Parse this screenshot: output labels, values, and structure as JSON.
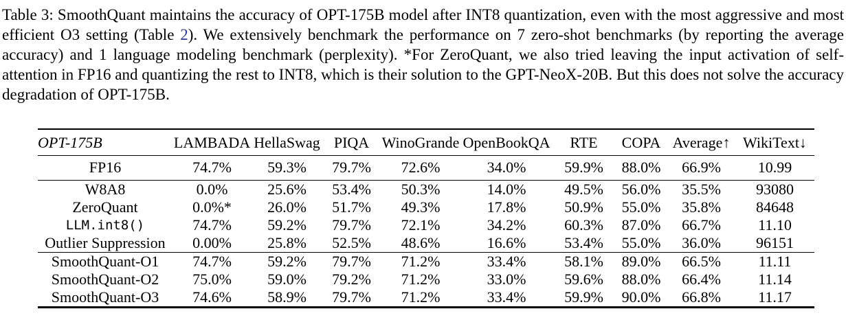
{
  "caption": {
    "label": "Table 3:",
    "prefix": "Table 3: SmoothQuant maintains the accuracy of OPT-175B model after INT8 quantization, even with the most aggressive and most efficient O3 setting (Table ",
    "link_text": "2",
    "link_color": "#2634b8",
    "suffix": "). We extensively benchmark the performance on 7 zero-shot benchmarks (by reporting the average accuracy) and 1 language modeling benchmark (perplexity). *For ZeroQuant, we also tried leaving the input activation of self-attention in FP16 and quantizing the rest to INT8, which is their solution to the GPT-NeoX-20B. But this does not solve the accuracy degradation of OPT-175B."
  },
  "table": {
    "columns": [
      {
        "label": "OPT-175B",
        "italic": true,
        "align": "left"
      },
      {
        "label": "LAMBADA"
      },
      {
        "label": "HellaSwag"
      },
      {
        "label": "PIQA"
      },
      {
        "label": "WinoGrande"
      },
      {
        "label": "OpenBookQA"
      },
      {
        "label": "RTE"
      },
      {
        "label": "COPA"
      },
      {
        "label": "Average↑",
        "bold": true
      },
      {
        "label": "WikiText↓",
        "bold": true
      }
    ],
    "groups": [
      {
        "rows": [
          {
            "method": "FP16",
            "values": [
              "74.7%",
              "59.3%",
              "79.7%",
              "72.6%",
              "34.0%",
              "59.9%",
              "88.0%",
              "66.9%",
              "10.99"
            ]
          }
        ]
      },
      {
        "rows": [
          {
            "method": "W8A8",
            "values": [
              "0.0%",
              "25.6%",
              "53.4%",
              "50.3%",
              "14.0%",
              "49.5%",
              "56.0%",
              "35.5%",
              "93080"
            ]
          },
          {
            "method": "ZeroQuant",
            "values": [
              "0.0%*",
              "26.0%",
              "51.7%",
              "49.3%",
              "17.8%",
              "50.9%",
              "55.0%",
              "35.8%",
              "84648"
            ]
          },
          {
            "method": "LLM.int8()",
            "mono": true,
            "values": [
              "74.7%",
              "59.2%",
              "79.7%",
              "72.1%",
              "34.2%",
              "60.3%",
              "87.0%",
              "66.7%",
              "11.10"
            ]
          },
          {
            "method": "Outlier Suppression",
            "values": [
              "0.00%",
              "25.8%",
              "52.5%",
              "48.6%",
              "16.6%",
              "53.4%",
              "55.0%",
              "36.0%",
              "96151"
            ]
          }
        ]
      },
      {
        "rows": [
          {
            "method": "SmoothQuant-O1",
            "values": [
              "74.7%",
              "59.2%",
              "79.7%",
              "71.2%",
              "33.4%",
              "58.1%",
              "89.0%",
              "66.5%",
              "11.11"
            ]
          },
          {
            "method": "SmoothQuant-O2",
            "values": [
              "75.0%",
              "59.0%",
              "79.2%",
              "71.2%",
              "33.0%",
              "59.6%",
              "88.0%",
              "66.4%",
              "11.14"
            ]
          },
          {
            "method": "SmoothQuant-O3",
            "values": [
              "74.6%",
              "58.9%",
              "79.7%",
              "71.2%",
              "33.4%",
              "59.9%",
              "90.0%",
              "66.8%",
              "11.17"
            ]
          }
        ]
      }
    ]
  }
}
